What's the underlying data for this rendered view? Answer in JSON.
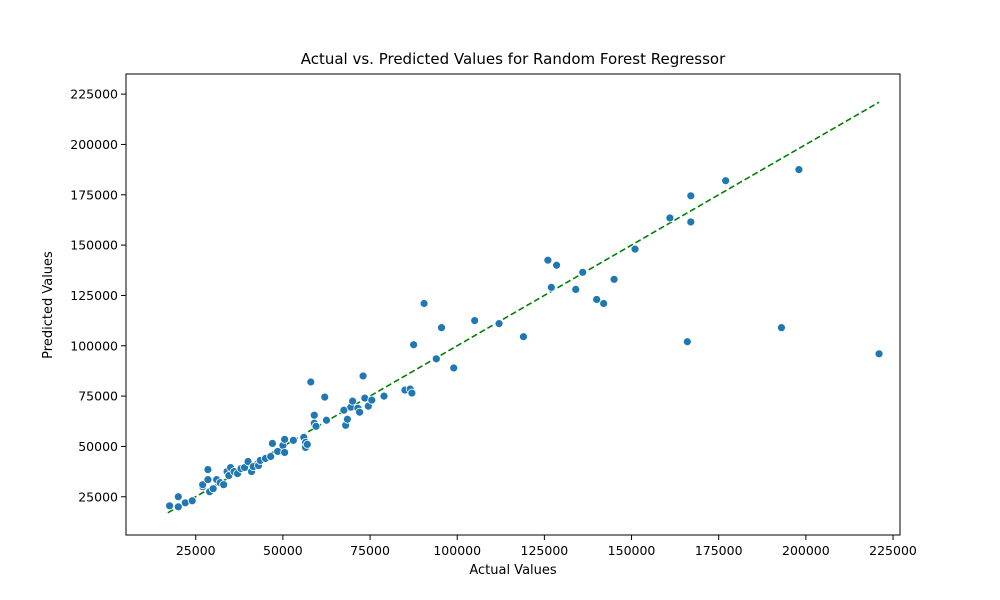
{
  "chart_data": {
    "type": "scatter",
    "title": "Actual vs. Predicted Values for Random Forest Regressor",
    "xlabel": "Actual Values",
    "ylabel": "Predicted Values",
    "xlim": [
      5000,
      227000
    ],
    "ylim": [
      6000,
      235000
    ],
    "x_ticks": [
      25000,
      50000,
      75000,
      100000,
      125000,
      150000,
      175000,
      200000,
      225000
    ],
    "y_ticks": [
      25000,
      50000,
      75000,
      100000,
      125000,
      150000,
      175000,
      200000,
      225000
    ],
    "x_tick_labels": [
      "25000",
      "50000",
      "75000",
      "100000",
      "125000",
      "150000",
      "175000",
      "200000",
      "225000"
    ],
    "y_tick_labels": [
      "25000",
      "50000",
      "75000",
      "100000",
      "125000",
      "150000",
      "175000",
      "200000",
      "225000"
    ],
    "grid": false,
    "point_color": "#1f77b4",
    "reference_line": {
      "x": [
        17000,
        221000
      ],
      "y": [
        17000,
        221000
      ],
      "style": "dashed",
      "color": "#008000"
    },
    "points": [
      {
        "x": 17500,
        "y": 20500
      },
      {
        "x": 20000,
        "y": 20000
      },
      {
        "x": 20000,
        "y": 25000
      },
      {
        "x": 22000,
        "y": 22000
      },
      {
        "x": 24000,
        "y": 23000
      },
      {
        "x": 27000,
        "y": 30000
      },
      {
        "x": 27000,
        "y": 31000
      },
      {
        "x": 28500,
        "y": 38500
      },
      {
        "x": 28500,
        "y": 33500
      },
      {
        "x": 29000,
        "y": 27500
      },
      {
        "x": 30000,
        "y": 29000
      },
      {
        "x": 31000,
        "y": 33500
      },
      {
        "x": 32000,
        "y": 32000
      },
      {
        "x": 33000,
        "y": 31000
      },
      {
        "x": 34000,
        "y": 37500
      },
      {
        "x": 34500,
        "y": 35500
      },
      {
        "x": 35000,
        "y": 39500
      },
      {
        "x": 36000,
        "y": 37500
      },
      {
        "x": 37000,
        "y": 36500
      },
      {
        "x": 38000,
        "y": 39000
      },
      {
        "x": 39000,
        "y": 39500
      },
      {
        "x": 40000,
        "y": 42500
      },
      {
        "x": 41000,
        "y": 37500
      },
      {
        "x": 41500,
        "y": 40000
      },
      {
        "x": 43000,
        "y": 40500
      },
      {
        "x": 43500,
        "y": 43000
      },
      {
        "x": 45000,
        "y": 44000
      },
      {
        "x": 46500,
        "y": 45000
      },
      {
        "x": 47000,
        "y": 51500
      },
      {
        "x": 48500,
        "y": 47500
      },
      {
        "x": 50000,
        "y": 50500
      },
      {
        "x": 50500,
        "y": 53500
      },
      {
        "x": 50500,
        "y": 47000
      },
      {
        "x": 53000,
        "y": 53000
      },
      {
        "x": 56000,
        "y": 54500
      },
      {
        "x": 56500,
        "y": 52000
      },
      {
        "x": 56500,
        "y": 49500
      },
      {
        "x": 57000,
        "y": 51000
      },
      {
        "x": 58000,
        "y": 82000
      },
      {
        "x": 59000,
        "y": 65500
      },
      {
        "x": 59000,
        "y": 61500
      },
      {
        "x": 59500,
        "y": 60000
      },
      {
        "x": 62000,
        "y": 74500
      },
      {
        "x": 62500,
        "y": 63000
      },
      {
        "x": 67500,
        "y": 68000
      },
      {
        "x": 68000,
        "y": 60500
      },
      {
        "x": 68500,
        "y": 63500
      },
      {
        "x": 69500,
        "y": 69500
      },
      {
        "x": 70000,
        "y": 72500
      },
      {
        "x": 71500,
        "y": 69000
      },
      {
        "x": 72000,
        "y": 67000
      },
      {
        "x": 73000,
        "y": 85000
      },
      {
        "x": 73500,
        "y": 74000
      },
      {
        "x": 74500,
        "y": 70000
      },
      {
        "x": 75500,
        "y": 73000
      },
      {
        "x": 79000,
        "y": 75000
      },
      {
        "x": 85000,
        "y": 78000
      },
      {
        "x": 86500,
        "y": 78500
      },
      {
        "x": 87000,
        "y": 76500
      },
      {
        "x": 87500,
        "y": 100500
      },
      {
        "x": 90500,
        "y": 121000
      },
      {
        "x": 94000,
        "y": 93500
      },
      {
        "x": 95500,
        "y": 109000
      },
      {
        "x": 99000,
        "y": 89000
      },
      {
        "x": 105000,
        "y": 112500
      },
      {
        "x": 112000,
        "y": 111000
      },
      {
        "x": 119000,
        "y": 104500
      },
      {
        "x": 126000,
        "y": 142500
      },
      {
        "x": 127000,
        "y": 129000
      },
      {
        "x": 128500,
        "y": 140000
      },
      {
        "x": 134000,
        "y": 128000
      },
      {
        "x": 136000,
        "y": 136500
      },
      {
        "x": 140000,
        "y": 123000
      },
      {
        "x": 142000,
        "y": 121000
      },
      {
        "x": 145000,
        "y": 133000
      },
      {
        "x": 151000,
        "y": 148000
      },
      {
        "x": 161000,
        "y": 163500
      },
      {
        "x": 166000,
        "y": 102000
      },
      {
        "x": 167000,
        "y": 174500
      },
      {
        "x": 167000,
        "y": 161500
      },
      {
        "x": 177000,
        "y": 182000
      },
      {
        "x": 193000,
        "y": 109000
      },
      {
        "x": 198000,
        "y": 187500
      },
      {
        "x": 221000,
        "y": 96000
      }
    ]
  }
}
